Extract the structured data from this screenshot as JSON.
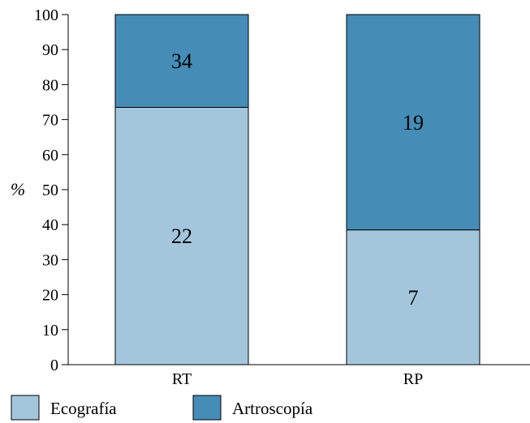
{
  "chart_data": {
    "type": "bar",
    "stacked": true,
    "title": "",
    "xlabel": "",
    "ylabel": "%",
    "ylim": [
      0,
      100
    ],
    "yticks": [
      0,
      10,
      20,
      30,
      40,
      50,
      60,
      70,
      80,
      90,
      100
    ],
    "categories": [
      "RT",
      "RP"
    ],
    "series": [
      {
        "name": "Ecografía",
        "color": "#a3c6dd",
        "percent": [
          73.5,
          38.5
        ],
        "labels": [
          "22",
          "7"
        ]
      },
      {
        "name": "Artroscopía",
        "color": "#458db7",
        "percent": [
          26.5,
          61.5
        ],
        "labels": [
          "34",
          "19"
        ]
      }
    ],
    "grid": false,
    "legend_position": "bottom-left"
  }
}
